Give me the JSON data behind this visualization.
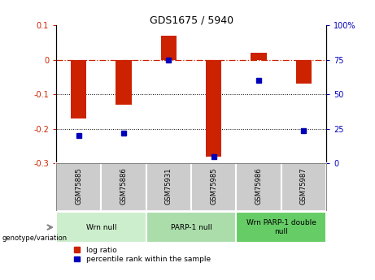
{
  "title": "GDS1675 / 5940",
  "samples": [
    "GSM75885",
    "GSM75886",
    "GSM75931",
    "GSM75985",
    "GSM75986",
    "GSM75987"
  ],
  "log_ratio": [
    -0.17,
    -0.13,
    0.07,
    -0.28,
    0.02,
    -0.07
  ],
  "percentile_rank": [
    20,
    22,
    75,
    5,
    60,
    24
  ],
  "ylim_left": [
    -0.3,
    0.1
  ],
  "ylim_right": [
    0,
    100
  ],
  "yticks_left": [
    -0.3,
    -0.2,
    -0.1,
    0.0,
    0.1
  ],
  "yticks_right": [
    0,
    25,
    50,
    75,
    100
  ],
  "groups": [
    {
      "label": "Wrn null",
      "start": 0,
      "end": 2,
      "color": "#cceecc"
    },
    {
      "label": "PARP-1 null",
      "start": 2,
      "end": 4,
      "color": "#aaddaa"
    },
    {
      "label": "Wrn PARP-1 double\nnull",
      "start": 4,
      "end": 6,
      "color": "#66cc66"
    }
  ],
  "bar_color": "#cc2200",
  "dot_color": "#0000bb",
  "bar_width": 0.35,
  "zero_line_color": "#cc2200",
  "grid_color": "#000000",
  "bg_color": "#ffffff",
  "sample_bg_color": "#cccccc",
  "sample_border_color": "#ffffff",
  "legend_items": [
    {
      "label": "log ratio",
      "color": "#cc2200"
    },
    {
      "label": "percentile rank within the sample",
      "color": "#0000bb"
    }
  ],
  "title_fontsize": 9,
  "tick_fontsize": 7,
  "sample_fontsize": 6,
  "group_fontsize": 6.5,
  "legend_fontsize": 6.5
}
